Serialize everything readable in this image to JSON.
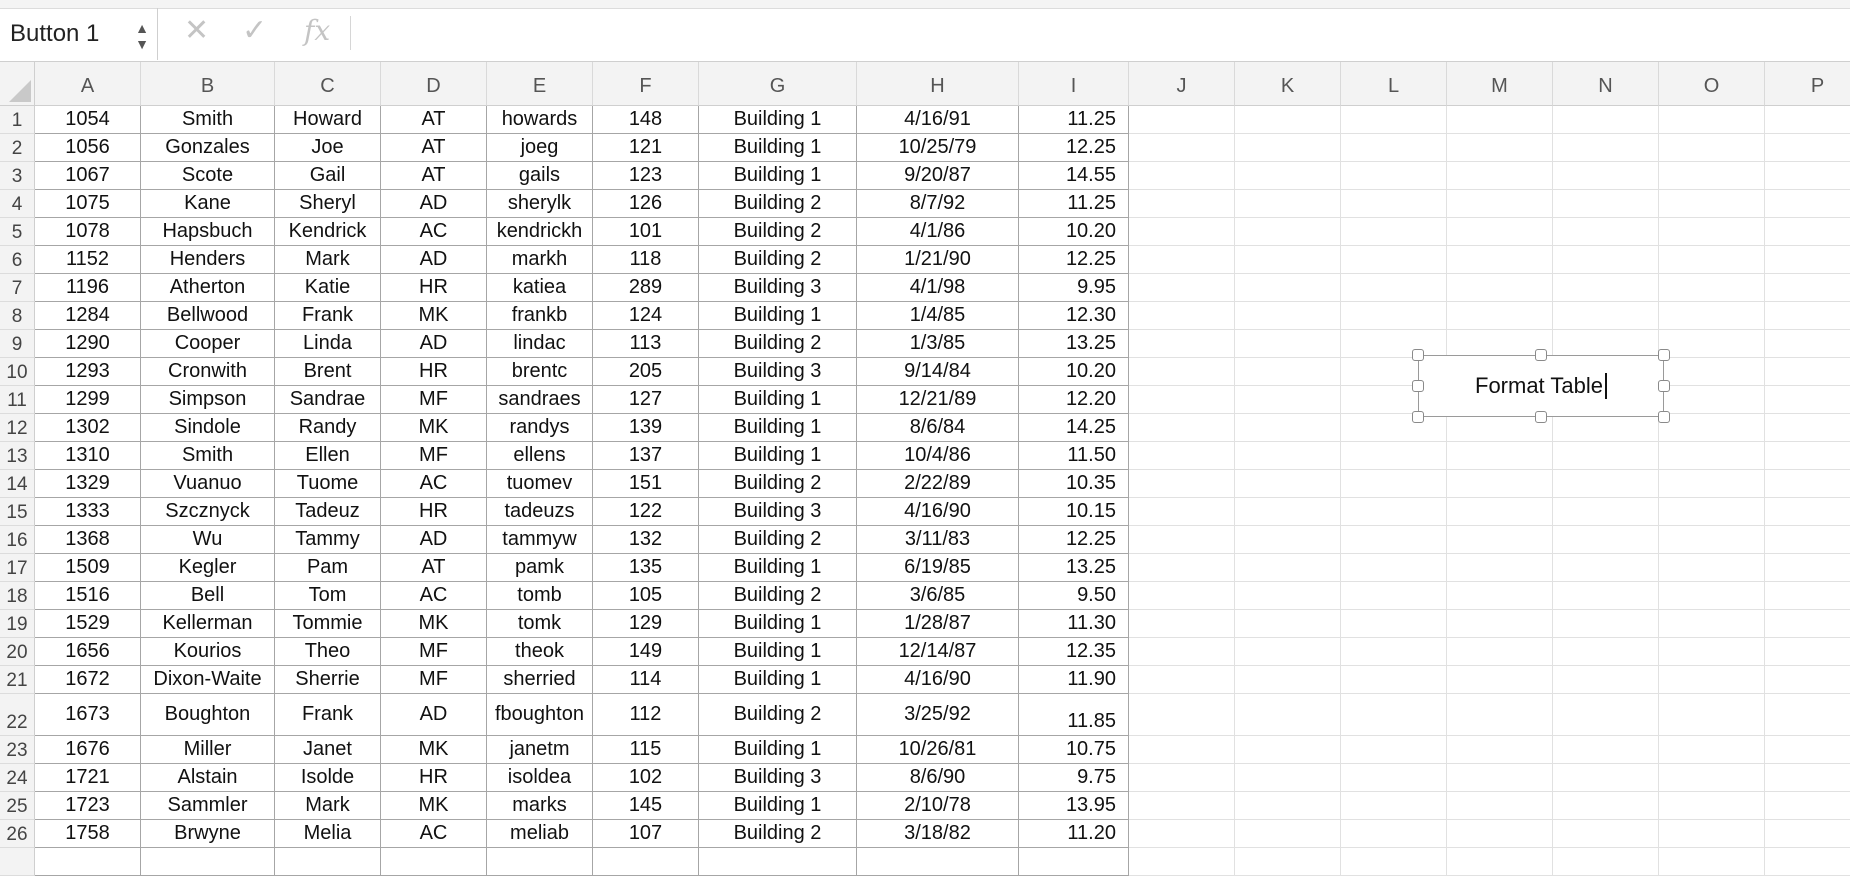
{
  "formula_bar": {
    "name_box": "Button 1",
    "stepper_icon": "up-down-arrows-icon",
    "cancel_icon": "x-icon",
    "confirm_icon": "checkmark-icon",
    "function_icon": "fx-icon",
    "function_label": "fx",
    "formula": ""
  },
  "columns": [
    "A",
    "B",
    "C",
    "D",
    "E",
    "F",
    "G",
    "H",
    "I",
    "J",
    "K",
    "L",
    "M",
    "N",
    "O",
    "P"
  ],
  "rows": [
    {
      "n": "1",
      "cells": [
        "1054",
        "Smith",
        "Howard",
        "AT",
        "howards",
        "148",
        "Building 1",
        "4/16/91",
        "11.25"
      ]
    },
    {
      "n": "2",
      "cells": [
        "1056",
        "Gonzales",
        "Joe",
        "AT",
        "joeg",
        "121",
        "Building 1",
        "10/25/79",
        "12.25"
      ]
    },
    {
      "n": "3",
      "cells": [
        "1067",
        "Scote",
        "Gail",
        "AT",
        "gails",
        "123",
        "Building 1",
        "9/20/87",
        "14.55"
      ]
    },
    {
      "n": "4",
      "cells": [
        "1075",
        "Kane",
        "Sheryl",
        "AD",
        "sherylk",
        "126",
        "Building 2",
        "8/7/92",
        "11.25"
      ]
    },
    {
      "n": "5",
      "cells": [
        "1078",
        "Hapsbuch",
        "Kendrick",
        "AC",
        "kendrickh",
        "101",
        "Building 2",
        "4/1/86",
        "10.20"
      ]
    },
    {
      "n": "6",
      "cells": [
        "1152",
        "Henders",
        "Mark",
        "AD",
        "markh",
        "118",
        "Building 2",
        "1/21/90",
        "12.25"
      ]
    },
    {
      "n": "7",
      "cells": [
        "1196",
        "Atherton",
        "Katie",
        "HR",
        "katiea",
        "289",
        "Building 3",
        "4/1/98",
        "9.95"
      ]
    },
    {
      "n": "8",
      "cells": [
        "1284",
        "Bellwood",
        "Frank",
        "MK",
        "frankb",
        "124",
        "Building 1",
        "1/4/85",
        "12.30"
      ]
    },
    {
      "n": "9",
      "cells": [
        "1290",
        "Cooper",
        "Linda",
        "AD",
        "lindac",
        "113",
        "Building 2",
        "1/3/85",
        "13.25"
      ]
    },
    {
      "n": "10",
      "cells": [
        "1293",
        "Cronwith",
        "Brent",
        "HR",
        "brentc",
        "205",
        "Building 3",
        "9/14/84",
        "10.20"
      ]
    },
    {
      "n": "11",
      "cells": [
        "1299",
        "Simpson",
        "Sandrae",
        "MF",
        "sandraes",
        "127",
        "Building 1",
        "12/21/89",
        "12.20"
      ]
    },
    {
      "n": "12",
      "cells": [
        "1302",
        "Sindole",
        "Randy",
        "MK",
        "randys",
        "139",
        "Building 1",
        "8/6/84",
        "14.25"
      ]
    },
    {
      "n": "13",
      "cells": [
        "1310",
        "Smith",
        "Ellen",
        "MF",
        "ellens",
        "137",
        "Building 1",
        "10/4/86",
        "11.50"
      ]
    },
    {
      "n": "14",
      "cells": [
        "1329",
        "Vuanuo",
        "Tuome",
        "AC",
        "tuomev",
        "151",
        "Building 2",
        "2/22/89",
        "10.35"
      ]
    },
    {
      "n": "15",
      "cells": [
        "1333",
        "Szcznyck",
        "Tadeuz",
        "HR",
        "tadeuzs",
        "122",
        "Building 3",
        "4/16/90",
        "10.15"
      ]
    },
    {
      "n": "16",
      "cells": [
        "1368",
        "Wu",
        "Tammy",
        "AD",
        "tammyw",
        "132",
        "Building 2",
        "3/11/83",
        "12.25"
      ]
    },
    {
      "n": "17",
      "cells": [
        "1509",
        "Kegler",
        "Pam",
        "AT",
        "pamk",
        "135",
        "Building 1",
        "6/19/85",
        "13.25"
      ]
    },
    {
      "n": "18",
      "cells": [
        "1516",
        "Bell",
        "Tom",
        "AC",
        "tomb",
        "105",
        "Building 2",
        "3/6/85",
        "9.50"
      ]
    },
    {
      "n": "19",
      "cells": [
        "1529",
        "Kellerman",
        "Tommie",
        "MK",
        "tomk",
        "129",
        "Building 1",
        "1/28/87",
        "11.30"
      ]
    },
    {
      "n": "20",
      "cells": [
        "1656",
        "Kourios",
        "Theo",
        "MF",
        "theok",
        "149",
        "Building 1",
        "12/14/87",
        "12.35"
      ]
    },
    {
      "n": "21",
      "cells": [
        "1672",
        "Dixon-Waite",
        "Sherrie",
        "MF",
        "sherried",
        "114",
        "Building 1",
        "4/16/90",
        "11.90"
      ]
    },
    {
      "n": "22",
      "cells": [
        "1673",
        "Boughton",
        "Frank",
        "AD",
        "fboughton",
        "112",
        "Building 2",
        "3/25/92",
        "11.85"
      ]
    },
    {
      "n": "23",
      "cells": [
        "1676",
        "Miller",
        "Janet",
        "MK",
        "janetm",
        "115",
        "Building 1",
        "10/26/81",
        "10.75"
      ]
    },
    {
      "n": "24",
      "cells": [
        "1721",
        "Alstain",
        "Isolde",
        "HR",
        "isoldea",
        "102",
        "Building 3",
        "8/6/90",
        "9.75"
      ]
    },
    {
      "n": "25",
      "cells": [
        "1723",
        "Sammler",
        "Mark",
        "MK",
        "marks",
        "145",
        "Building 1",
        "2/10/78",
        "13.95"
      ]
    },
    {
      "n": "26",
      "cells": [
        "1758",
        "Brwyne",
        "Melia",
        "AC",
        "meliab",
        "107",
        "Building 2",
        "3/18/82",
        "11.20"
      ]
    }
  ],
  "form_button": {
    "label": "Format Table"
  }
}
